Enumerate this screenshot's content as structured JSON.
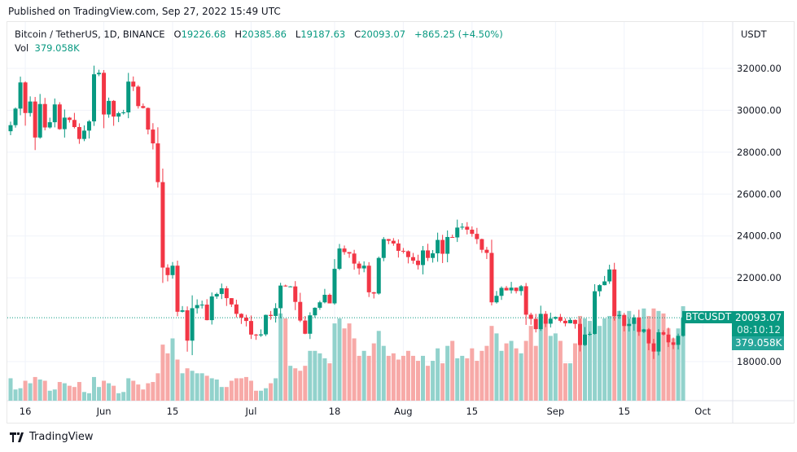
{
  "published": "Published on TradingView.com, Sep 27, 2022 15:49 UTC",
  "legend": {
    "symbol": "Bitcoin / TetherUS, 1D, BINANCE",
    "o_label": "O",
    "o": "19226.68",
    "h_label": "H",
    "h": "20385.86",
    "l_label": "L",
    "l": "19187.63",
    "c_label": "C",
    "c": "20093.07",
    "change": "+865.25 (+4.50%)",
    "vol_label": "Vol",
    "vol": "379.058K"
  },
  "axis_unit": "USDT",
  "tags": {
    "symbol": "BTCUSDT",
    "price": "20093.07",
    "countdown": "08:10:12",
    "volume": "379.058K"
  },
  "footer": {
    "brand": "TradingView"
  },
  "colors": {
    "up": "#089981",
    "down": "#f23645",
    "up_vol": "#92d2cc",
    "down_vol": "#f7a9a7"
  },
  "chart_data": {
    "type": "candlestick",
    "title": "Bitcoin / TetherUS, 1D, BINANCE",
    "start_date": "2022-05-13",
    "ylim": [
      16000,
      33000
    ],
    "y_ticks": [
      "32000.00",
      "30000.00",
      "28000.00",
      "26000.00",
      "24000.00",
      "22000.00",
      "18000.00"
    ],
    "y_tick_values": [
      32000,
      30000,
      28000,
      26000,
      24000,
      22000,
      18000
    ],
    "x_ticks": [
      {
        "label": "16",
        "day": 3
      },
      {
        "label": "Jun",
        "day": 19
      },
      {
        "label": "15",
        "day": 33
      },
      {
        "label": "Jul",
        "day": 49
      },
      {
        "label": "18",
        "day": 66
      },
      {
        "label": "Aug",
        "day": 80
      },
      {
        "label": "15",
        "day": 94
      },
      {
        "label": "Sep",
        "day": 111
      },
      {
        "label": "15",
        "day": 125
      },
      {
        "label": "Oct",
        "day": 141
      }
    ],
    "first_open": 29000,
    "close": [
      29290,
      30080,
      31330,
      29870,
      30420,
      28700,
      30300,
      29180,
      29430,
      30280,
      29100,
      29650,
      29540,
      29200,
      28630,
      29030,
      29470,
      31720,
      31790,
      29800,
      30450,
      29700,
      29860,
      29900,
      31370,
      31130,
      30200,
      30110,
      29080,
      28420,
      26570,
      22490,
      22130,
      22580,
      20380,
      20450,
      19000,
      20550,
      20700,
      20720,
      19980,
      21110,
      21230,
      21500,
      21030,
      20730,
      20280,
      20100,
      19940,
      19290,
      19250,
      19300,
      20230,
      20180,
      20550,
      21630,
      21590,
      21590,
      20850,
      19960,
      19330,
      20210,
      20570,
      20830,
      21190,
      20780,
      22430,
      23400,
      23230,
      23160,
      22680,
      22450,
      22580,
      21310,
      21250,
      22950,
      23850,
      23770,
      23640,
      23290,
      23270,
      22990,
      22820,
      22610,
      23310,
      22950,
      23170,
      23810,
      23150,
      23950,
      23930,
      24400,
      24440,
      24300,
      24100,
      23850,
      23340,
      23190,
      20830,
      21140,
      21520,
      21400,
      21530,
      21370,
      21600,
      20240,
      20040,
      19550,
      20280,
      19810,
      20050,
      20130,
      19950,
      19830,
      19990,
      19800,
      18790,
      19290,
      19320,
      21360,
      21650,
      21830,
      22400,
      20170,
      20230,
      19700,
      19800,
      20110,
      19420,
      19540,
      18870,
      18480,
      19400,
      19290,
      18920,
      18800,
      19230,
      20093.07
    ],
    "last_ohlc": {
      "open": 19226.68,
      "high": 20385.86,
      "low": 19187.63,
      "close": 20093.07
    },
    "volume_k": [
      90,
      45,
      50,
      80,
      70,
      95,
      85,
      80,
      40,
      45,
      75,
      70,
      60,
      55,
      75,
      35,
      30,
      95,
      55,
      80,
      70,
      60,
      30,
      35,
      90,
      80,
      65,
      45,
      70,
      75,
      110,
      225,
      190,
      250,
      165,
      110,
      130,
      120,
      110,
      110,
      100,
      90,
      85,
      55,
      55,
      80,
      90,
      90,
      95,
      80,
      40,
      40,
      50,
      70,
      90,
      350,
      330,
      140,
      130,
      120,
      140,
      200,
      200,
      190,
      170,
      150,
      310,
      330,
      290,
      310,
      250,
      180,
      200,
      180,
      230,
      280,
      220,
      180,
      190,
      165,
      180,
      200,
      180,
      160,
      180,
      140,
      160,
      210,
      150,
      220,
      240,
      170,
      180,
      170,
      210,
      160,
      200,
      220,
      300,
      270,
      200,
      230,
      240,
      210,
      190,
      240,
      300,
      220,
      340,
      320,
      260,
      270,
      240,
      150,
      150,
      230,
      340,
      330,
      320,
      400,
      300,
      330,
      340,
      360,
      360,
      340,
      360,
      320,
      300,
      370,
      340,
      370,
      360,
      350,
      290,
      250,
      290,
      379.058
    ]
  }
}
